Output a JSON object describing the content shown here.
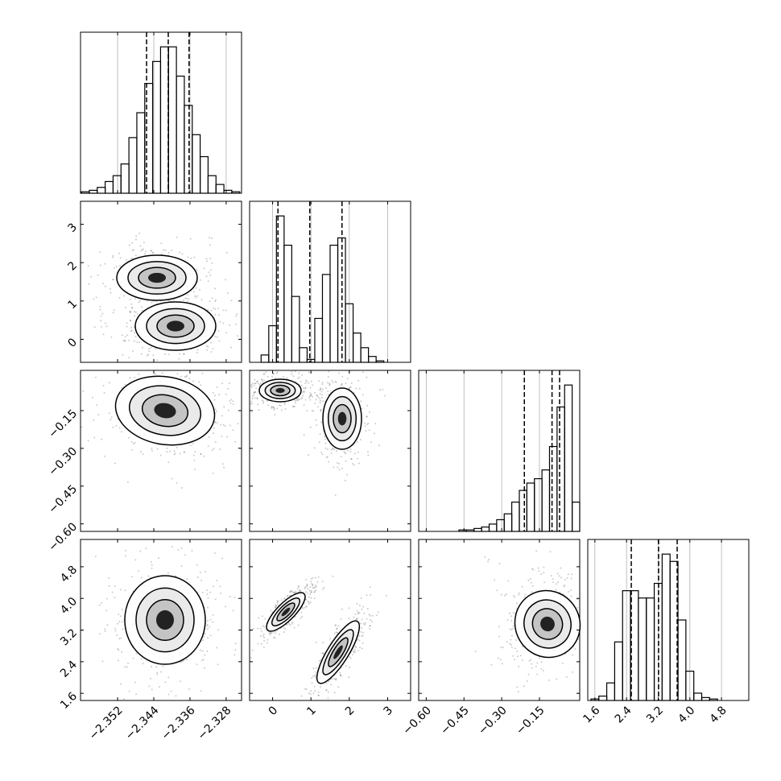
{
  "chart_data": [
    {
      "type": "histogram",
      "color": "#000000",
      "grid": true,
      "bins": [
        -2.36,
        -2.35825,
        -2.3565,
        -2.35475,
        -2.353,
        -2.35125,
        -2.3495,
        -2.34775,
        -2.346,
        -2.34425,
        -2.3425,
        -2.34075,
        -2.339,
        -2.33725,
        -2.3355,
        -2.33375,
        -2.332,
        -2.33025,
        -2.3285,
        -2.32675,
        -2.325
      ],
      "counts": [
        1,
        2,
        4,
        8,
        12,
        20,
        38,
        55,
        75,
        90,
        100,
        100,
        80,
        60,
        40,
        25,
        12,
        6,
        2,
        1
      ],
      "quantiles": [
        -2.3456,
        -2.3408,
        -2.3362
      ],
      "xlim": [
        -2.3602,
        -2.3246
      ],
      "ylim": [
        0,
        110
      ],
      "xticks": [
        {
          "value": -2.352,
          "label": "−2.352"
        },
        {
          "value": -2.344,
          "label": "−2.344"
        },
        {
          "value": -2.336,
          "label": "−2.336"
        },
        {
          "value": -2.328,
          "label": "−2.328"
        }
      ]
    },
    {
      "type": "histogram",
      "color": "#000000",
      "grid": true,
      "bins": [
        -0.5,
        -0.3,
        -0.1,
        0.1,
        0.3,
        0.5,
        0.7,
        0.9,
        1.1,
        1.3,
        1.5,
        1.7,
        1.9,
        2.1,
        2.3,
        2.5,
        2.7,
        2.9,
        3.1,
        3.3,
        3.5
      ],
      "counts": [
        0,
        5,
        25,
        100,
        80,
        45,
        10,
        2,
        30,
        60,
        80,
        85,
        40,
        20,
        10,
        4,
        1,
        0,
        0,
        0
      ],
      "quantiles": [
        0.14,
        0.97,
        1.81
      ],
      "xlim": [
        -0.6,
        3.6
      ],
      "ylim": [
        0,
        110
      ],
      "xticks": [
        0,
        1,
        2,
        3
      ]
    },
    {
      "type": "histogram",
      "color": "#000000",
      "grid": true,
      "bins": [
        -0.62,
        -0.59,
        -0.56,
        -0.53,
        -0.5,
        -0.47,
        -0.44,
        -0.41,
        -0.38,
        -0.35,
        -0.32,
        -0.29,
        -0.26,
        -0.23,
        -0.2,
        -0.17,
        -0.14,
        -0.11,
        -0.08,
        -0.05,
        -0.02,
        0.01
      ],
      "counts": [
        0,
        0,
        0,
        0,
        0,
        1,
        1,
        2,
        3,
        5,
        8,
        12,
        20,
        28,
        33,
        36,
        42,
        58,
        85,
        100,
        20
      ],
      "quantiles": [
        -0.21,
        -0.1,
        -0.07
      ],
      "xlim": [
        -0.63,
        0.01
      ],
      "ylim": [
        0,
        110
      ],
      "xticks": [
        {
          "value": -0.6,
          "label": "−0.60"
        },
        {
          "value": -0.45,
          "label": "−0.45"
        },
        {
          "value": -0.3,
          "label": "−0.30"
        },
        {
          "value": -0.15,
          "label": "−0.15"
        }
      ]
    },
    {
      "type": "histogram",
      "color": "#000000",
      "grid": true,
      "bins": [
        1.5,
        1.7,
        1.9,
        2.1,
        2.3,
        2.5,
        2.7,
        2.9,
        3.1,
        3.3,
        3.5,
        3.7,
        3.9,
        4.1,
        4.3,
        4.5,
        4.7,
        4.9,
        5.1,
        5.3,
        5.5
      ],
      "counts": [
        1,
        3,
        12,
        40,
        75,
        75,
        70,
        70,
        80,
        100,
        95,
        55,
        20,
        5,
        2,
        1,
        0,
        0,
        0,
        0
      ],
      "quantiles": [
        2.52,
        3.21,
        3.68
      ],
      "xlim": [
        1.42,
        5.49
      ],
      "ylim": [
        0,
        110
      ],
      "xticks": [
        1.6,
        2.4,
        3.2,
        {
          "value": 4,
          "label": "4.0"
        },
        4.8
      ]
    }
  ]
}
